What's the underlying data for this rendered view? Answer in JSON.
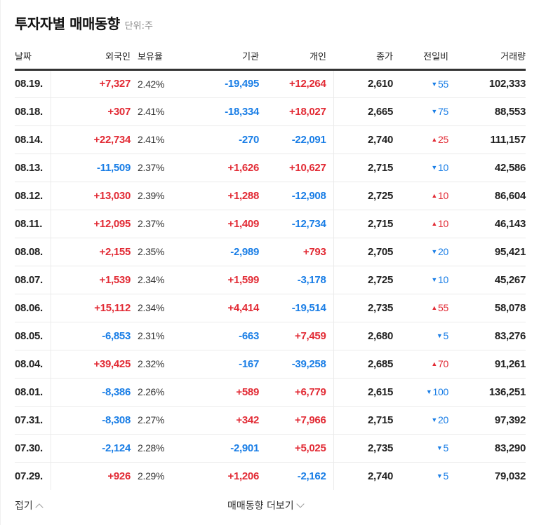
{
  "header": {
    "title": "투자자별 매매동향",
    "unit": "단위:주"
  },
  "table": {
    "columns": {
      "date": "날짜",
      "foreign": "외국인",
      "ratio": "보유율",
      "institution": "기관",
      "individual": "개인",
      "close": "종가",
      "change": "전일비",
      "volume": "거래량"
    },
    "rows": [
      {
        "date": "08.19.",
        "foreign": "+7,327",
        "ratio": "2.42%",
        "institution": "-19,495",
        "individual": "+12,264",
        "close": "2,610",
        "change_dir": "down",
        "change_icon": "▼",
        "change": "55",
        "volume": "102,333"
      },
      {
        "date": "08.18.",
        "foreign": "+307",
        "ratio": "2.41%",
        "institution": "-18,334",
        "individual": "+18,027",
        "close": "2,665",
        "change_dir": "down",
        "change_icon": "▼",
        "change": "75",
        "volume": "88,553"
      },
      {
        "date": "08.14.",
        "foreign": "+22,734",
        "ratio": "2.41%",
        "institution": "-270",
        "individual": "-22,091",
        "close": "2,740",
        "change_dir": "up",
        "change_icon": "▲",
        "change": "25",
        "volume": "111,157"
      },
      {
        "date": "08.13.",
        "foreign": "-11,509",
        "ratio": "2.37%",
        "institution": "+1,626",
        "individual": "+10,627",
        "close": "2,715",
        "change_dir": "down",
        "change_icon": "▼",
        "change": "10",
        "volume": "42,586"
      },
      {
        "date": "08.12.",
        "foreign": "+13,030",
        "ratio": "2.39%",
        "institution": "+1,288",
        "individual": "-12,908",
        "close": "2,725",
        "change_dir": "up",
        "change_icon": "▲",
        "change": "10",
        "volume": "86,604"
      },
      {
        "date": "08.11.",
        "foreign": "+12,095",
        "ratio": "2.37%",
        "institution": "+1,409",
        "individual": "-12,734",
        "close": "2,715",
        "change_dir": "up",
        "change_icon": "▲",
        "change": "10",
        "volume": "46,143"
      },
      {
        "date": "08.08.",
        "foreign": "+2,155",
        "ratio": "2.35%",
        "institution": "-2,989",
        "individual": "+793",
        "close": "2,705",
        "change_dir": "down",
        "change_icon": "▼",
        "change": "20",
        "volume": "95,421"
      },
      {
        "date": "08.07.",
        "foreign": "+1,539",
        "ratio": "2.34%",
        "institution": "+1,599",
        "individual": "-3,178",
        "close": "2,725",
        "change_dir": "down",
        "change_icon": "▼",
        "change": "10",
        "volume": "45,267"
      },
      {
        "date": "08.06.",
        "foreign": "+15,112",
        "ratio": "2.34%",
        "institution": "+4,414",
        "individual": "-19,514",
        "close": "2,735",
        "change_dir": "up",
        "change_icon": "▲",
        "change": "55",
        "volume": "58,078"
      },
      {
        "date": "08.05.",
        "foreign": "-6,853",
        "ratio": "2.31%",
        "institution": "-663",
        "individual": "+7,459",
        "close": "2,680",
        "change_dir": "down",
        "change_icon": "▼",
        "change": "5",
        "volume": "83,276"
      },
      {
        "date": "08.04.",
        "foreign": "+39,425",
        "ratio": "2.32%",
        "institution": "-167",
        "individual": "-39,258",
        "close": "2,685",
        "change_dir": "up",
        "change_icon": "▲",
        "change": "70",
        "volume": "91,261"
      },
      {
        "date": "08.01.",
        "foreign": "-8,386",
        "ratio": "2.26%",
        "institution": "+589",
        "individual": "+6,779",
        "close": "2,615",
        "change_dir": "down",
        "change_icon": "▼",
        "change": "100",
        "volume": "136,251"
      },
      {
        "date": "07.31.",
        "foreign": "-8,308",
        "ratio": "2.27%",
        "institution": "+342",
        "individual": "+7,966",
        "close": "2,715",
        "change_dir": "down",
        "change_icon": "▼",
        "change": "20",
        "volume": "97,392"
      },
      {
        "date": "07.30.",
        "foreign": "-2,124",
        "ratio": "2.28%",
        "institution": "-2,901",
        "individual": "+5,025",
        "close": "2,735",
        "change_dir": "down",
        "change_icon": "▼",
        "change": "5",
        "volume": "83,290"
      },
      {
        "date": "07.29.",
        "foreign": "+926",
        "ratio": "2.29%",
        "institution": "+1,206",
        "individual": "-2,162",
        "close": "2,740",
        "change_dir": "down",
        "change_icon": "▼",
        "change": "5",
        "volume": "79,032"
      }
    ]
  },
  "footer": {
    "fold_label": "접기",
    "more_label": "매매동향 더보기"
  },
  "colors": {
    "up": "#e22b35",
    "down": "#1a7ee6",
    "text": "#222222",
    "header_rule": "#333333",
    "row_rule": "#ebebeb"
  }
}
